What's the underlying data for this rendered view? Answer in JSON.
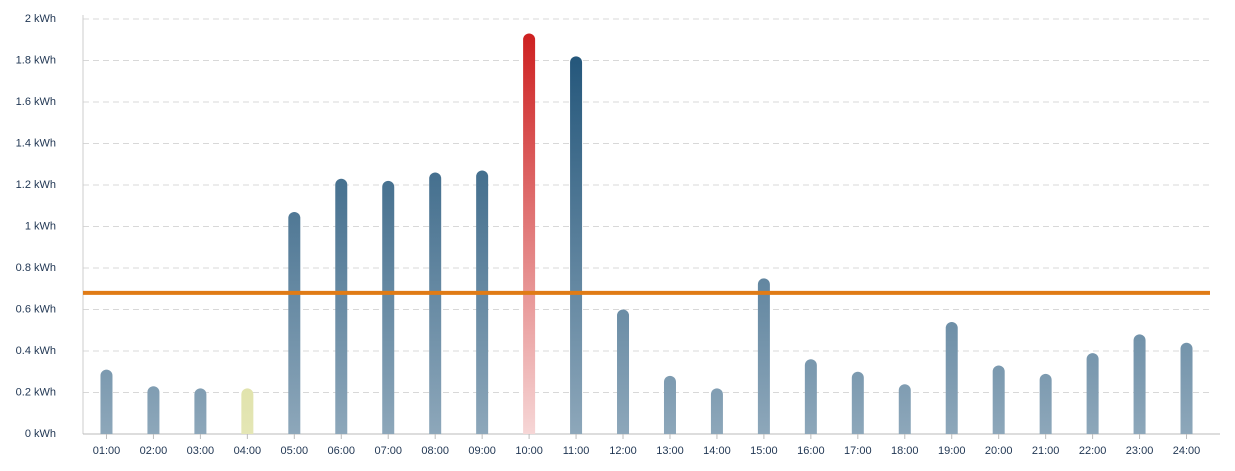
{
  "chart_data": {
    "type": "bar",
    "categories": [
      "01:00",
      "02:00",
      "03:00",
      "04:00",
      "05:00",
      "06:00",
      "07:00",
      "08:00",
      "09:00",
      "10:00",
      "11:00",
      "12:00",
      "13:00",
      "14:00",
      "15:00",
      "16:00",
      "17:00",
      "18:00",
      "19:00",
      "20:00",
      "21:00",
      "22:00",
      "23:00",
      "24:00"
    ],
    "values": [
      0.31,
      0.23,
      0.22,
      0.22,
      1.07,
      1.23,
      1.22,
      1.26,
      1.27,
      1.93,
      1.82,
      0.6,
      0.28,
      0.22,
      0.75,
      0.36,
      0.3,
      0.24,
      0.54,
      0.33,
      0.29,
      0.39,
      0.48,
      0.44
    ],
    "colors": [
      "#1a4f75",
      "#1a4f75",
      "#1a4f75",
      "#c8cc6a",
      "#1a4f75",
      "#1a4f75",
      "#1a4f75",
      "#1a4f75",
      "#1a4f75",
      "#cc1a1a",
      "#1a4f75",
      "#1a4f75",
      "#1a4f75",
      "#1a4f75",
      "#1a4f75",
      "#1a4f75",
      "#1a4f75",
      "#1a4f75",
      "#1a4f75",
      "#1a4f75",
      "#1a4f75",
      "#1a4f75",
      "#1a4f75",
      "#1a4f75"
    ],
    "reference_line": {
      "value": 0.68,
      "color": "#e07b16"
    },
    "ylim": [
      0,
      2
    ],
    "yticks": [
      {
        "value": 0,
        "label": "0 kWh"
      },
      {
        "value": 0.2,
        "label": "0.2 kWh"
      },
      {
        "value": 0.4,
        "label": "0.4 kWh"
      },
      {
        "value": 0.6,
        "label": "0.6 kWh"
      },
      {
        "value": 0.8,
        "label": "0.8 kWh"
      },
      {
        "value": 1,
        "label": "1 kWh"
      },
      {
        "value": 1.2,
        "label": "1.2 kWh"
      },
      {
        "value": 1.4,
        "label": "1.4 kWh"
      },
      {
        "value": 1.6,
        "label": "1.6 kWh"
      },
      {
        "value": 1.8,
        "label": "1.8 kWh"
      },
      {
        "value": 2,
        "label": "2 kWh"
      }
    ],
    "grid": true
  }
}
